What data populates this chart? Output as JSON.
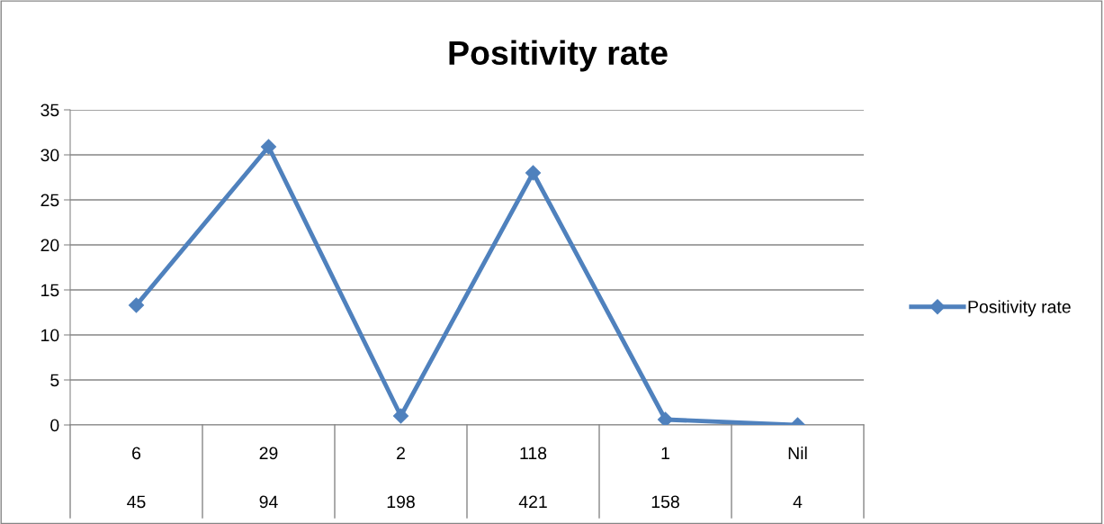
{
  "chart_data": {
    "type": "line",
    "title": "Positivity rate",
    "categories": [
      "6\n45",
      "29\n94",
      "2\n198",
      "118\n421",
      "1\n158",
      "Nil\n4"
    ],
    "series": [
      {
        "name": "Positivity rate",
        "color": "#4f81bd",
        "values": [
          13.3,
          30.9,
          1.0,
          28.0,
          0.6,
          0
        ]
      }
    ],
    "ylim": [
      0,
      35
    ],
    "yticks": [
      0,
      5,
      10,
      15,
      20,
      25,
      30,
      35
    ],
    "grid": "y",
    "legend": "right",
    "marker": "diamond",
    "line_style": "solid"
  }
}
